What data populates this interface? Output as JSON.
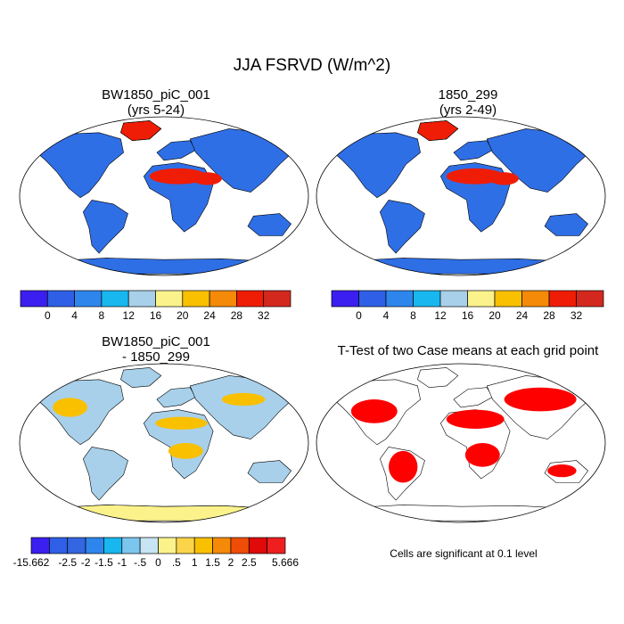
{
  "main_title": "JJA FSRVD (W/m^2)",
  "panels": [
    {
      "title_line1": "BW1850_piC_001",
      "title_line2": "(yrs 5-24)"
    },
    {
      "title_line1": "1850_299",
      "title_line2": "(yrs 2-49)"
    },
    {
      "title_line1": "BW1850_piC_001",
      "title_line2": "- 1850_299"
    },
    {
      "title_line1": "T-Test of two Case means at each grid point",
      "title_line2": ""
    }
  ],
  "colorbar_top": {
    "colors": [
      "#3b1ef0",
      "#2f5fe6",
      "#2e86ec",
      "#18b7ef",
      "#a8d0ea",
      "#fbf28c",
      "#f9c000",
      "#f58a08",
      "#ef1d05",
      "#d3281e"
    ],
    "labels": [
      "0",
      "4",
      "8",
      "12",
      "16",
      "20",
      "24",
      "28",
      "32"
    ]
  },
  "colorbar_diff": {
    "colors": [
      "#3b1ef0",
      "#2f5fe6",
      "#3366e0",
      "#2e86ec",
      "#18b7ef",
      "#7cc6ee",
      "#c6e4f2",
      "#fbf28c",
      "#fbd449",
      "#f9c000",
      "#f58a08",
      "#ef4d05",
      "#e00a0a",
      "#f01f1f"
    ],
    "labels": [
      "-15.662",
      "-2.5",
      "-2",
      "-1.5",
      "-1",
      "-.5",
      "0",
      ".5",
      "1",
      "1.5",
      "2",
      "2.5",
      "5.666"
    ]
  },
  "ttest_note": "Cells are significant at 0.1 level",
  "map_colors": {
    "ocean": "#ffffff",
    "land_base": "#2f6fe6",
    "desert_hot": "#ef1d05",
    "desert_warm": "#f58a08",
    "diff_base": "#a8d0ea",
    "diff_warm": "#f9c000",
    "signif": "#ff0000"
  }
}
